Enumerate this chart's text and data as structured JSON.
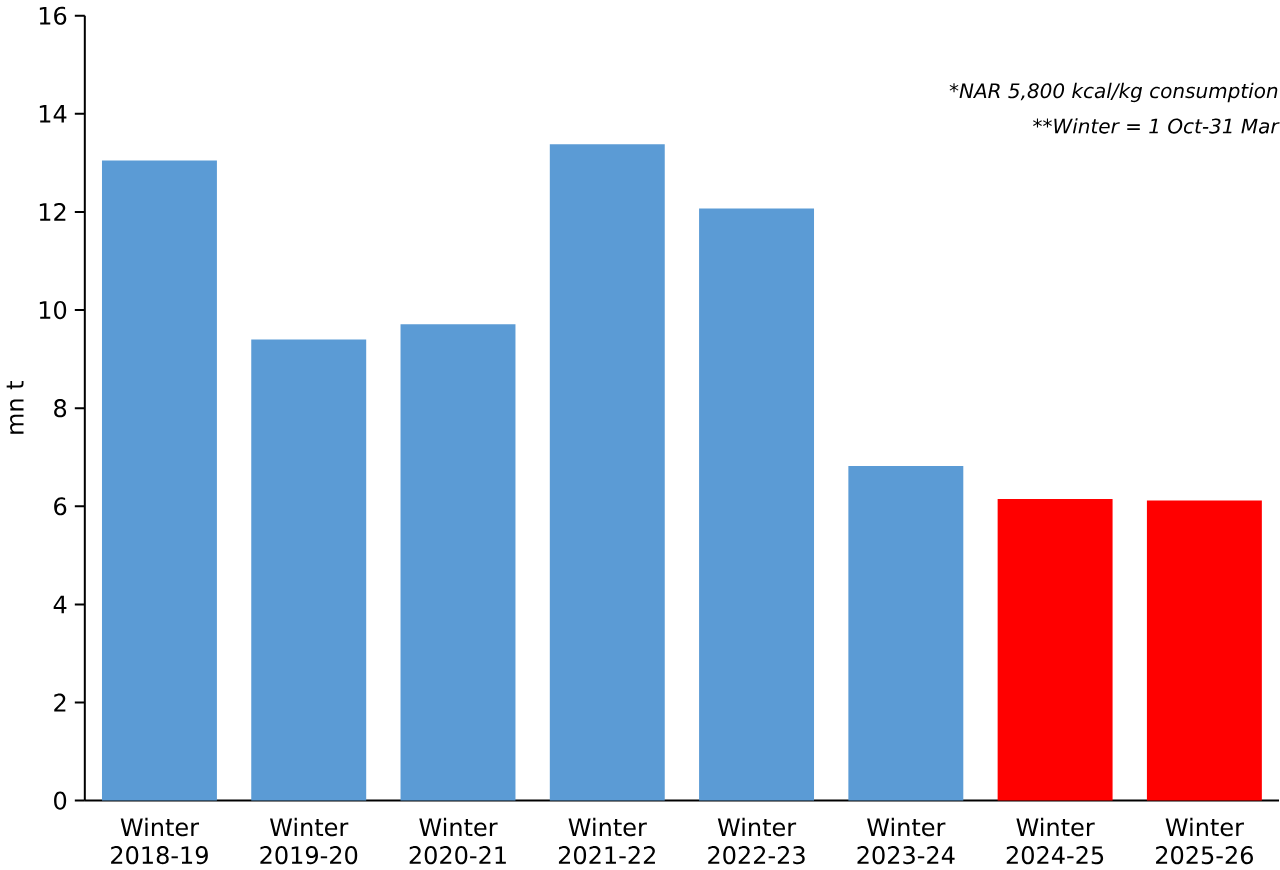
{
  "chart_data": {
    "type": "bar",
    "ylabel": "mn t",
    "categories": [
      "Winter 2018-19",
      "Winter 2019-20",
      "Winter 2020-21",
      "Winter 2021-22",
      "Winter 2022-23",
      "Winter 2023-24",
      "Winter 2024-25",
      "Winter 2025-26"
    ],
    "values": [
      13.05,
      9.4,
      9.71,
      13.38,
      12.07,
      6.82,
      6.15,
      6.12
    ],
    "colors": [
      "#5b9bd5",
      "#5b9bd5",
      "#5b9bd5",
      "#5b9bd5",
      "#5b9bd5",
      "#5b9bd5",
      "#ff0000",
      "#ff0000"
    ],
    "ylim": [
      0,
      16
    ],
    "yticks": [
      0,
      2,
      4,
      6,
      8,
      10,
      12,
      14,
      16
    ],
    "annotations": [
      "*NAR 5,800 kcal/kg consumption",
      "**Winter = 1 Oct-31 Mar"
    ]
  }
}
